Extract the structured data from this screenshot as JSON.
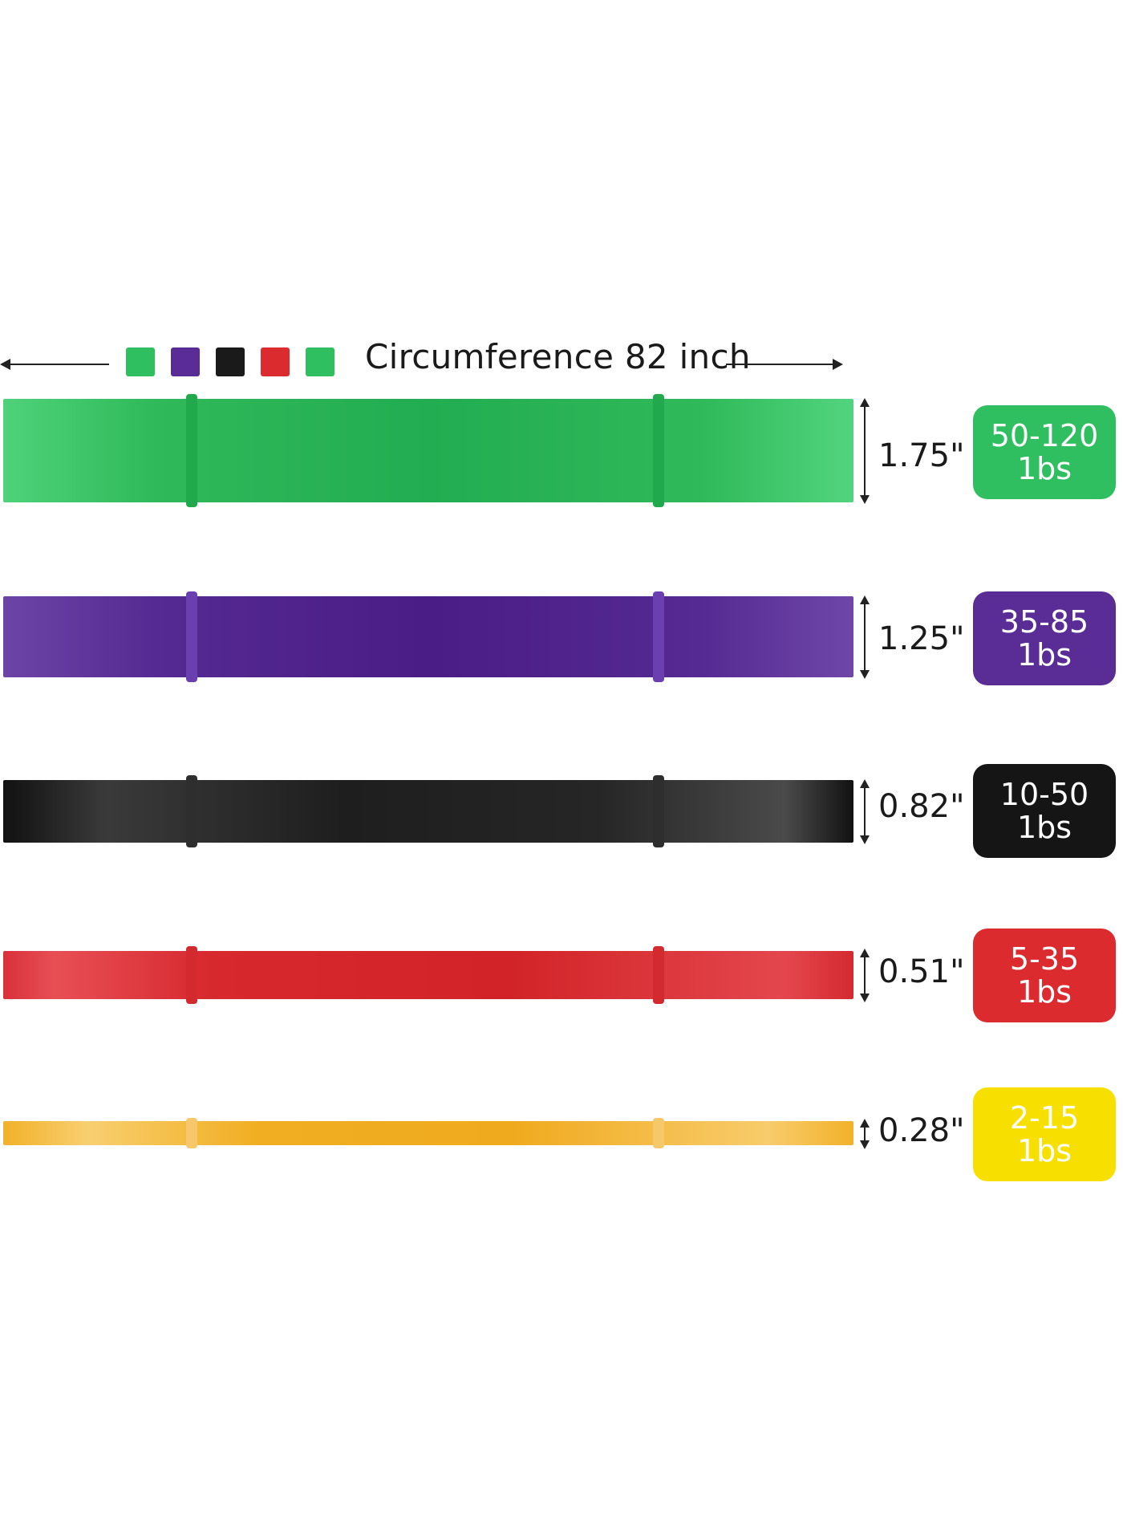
{
  "header": {
    "title": "Circumference 82 inch",
    "swatches": [
      {
        "name": "green-swatch",
        "color": "#2fbf60"
      },
      {
        "name": "purple-swatch",
        "color": "#5a2d96"
      },
      {
        "name": "black-swatch",
        "color": "#1a1a1a"
      },
      {
        "name": "red-swatch",
        "color": "#dc2b2f"
      },
      {
        "name": "green-swatch-2",
        "color": "#2fbf60"
      }
    ]
  },
  "bands": [
    {
      "id": "green",
      "width_label": "1.75\"",
      "resistance": "50-120",
      "unit": "1bs",
      "badge_color": "#2fbf60"
    },
    {
      "id": "purple",
      "width_label": "1.25\"",
      "resistance": "35-85",
      "unit": "1bs",
      "badge_color": "#5a2d96"
    },
    {
      "id": "black",
      "width_label": "0.82\"",
      "resistance": "10-50",
      "unit": "1bs",
      "badge_color": "#151515"
    },
    {
      "id": "red",
      "width_label": "0.51\"",
      "resistance": "5-35",
      "unit": "1bs",
      "badge_color": "#dc2b2f"
    },
    {
      "id": "yellow",
      "width_label": "0.28\"",
      "resistance": "2-15",
      "unit": "1bs",
      "badge_color": "#f7e000"
    }
  ]
}
